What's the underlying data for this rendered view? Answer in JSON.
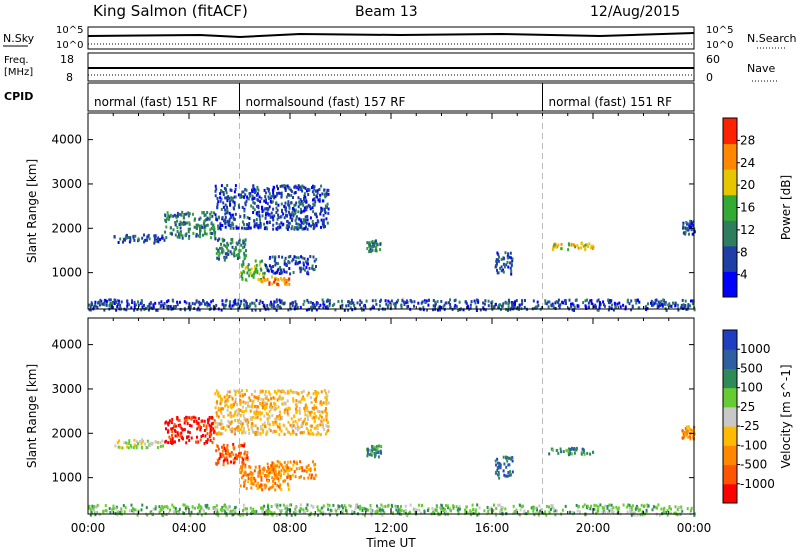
{
  "header": {
    "station": "King Salmon (fitACF)",
    "beam": "Beam 13",
    "date": "12/Aug/2015"
  },
  "summary_panels": {
    "nsky_label": "N.Sky",
    "nsearch_label": "N.Search",
    "freq_label_line1": "Freq.",
    "freq_label_line2": "[MHz]",
    "nave_label": "Nave",
    "cpid_label": "CPID",
    "nsky_ticks": [
      "10^5",
      "10^0"
    ],
    "nsearch_ticks": [
      "10^5",
      "10^0"
    ],
    "freq_ticks": [
      "18",
      "8"
    ],
    "nave_ticks": [
      "60",
      "0"
    ],
    "modes": [
      {
        "label": "normal (fast) 151 RF",
        "start": 0,
        "end": 6
      },
      {
        "label": "normalsound (fast) 157 RF",
        "start": 6,
        "end": 18
      },
      {
        "label": "normal (fast) 151 RF",
        "start": 18,
        "end": 24
      }
    ]
  },
  "chart_data": [
    {
      "type": "heatmap",
      "name": "power",
      "ylabel": "Slant Range [km]",
      "xlabel": "",
      "xlim": [
        0,
        24
      ],
      "ylim": [
        180,
        4600
      ],
      "yticks": [
        1000,
        2000,
        3000,
        4000
      ],
      "colorbar": {
        "label": "Power [dB]",
        "ticks": [
          "28",
          "24",
          "20",
          "16",
          "12",
          "8",
          "4"
        ],
        "colors": [
          "#0000ff",
          "#1f3fa6",
          "#2e7d5e",
          "#33aa33",
          "#e6c600",
          "#ff8800",
          "#ff2200"
        ]
      },
      "regions": [
        {
          "t0": 1.0,
          "t1": 3.0,
          "r0": 1700,
          "r1": 1900,
          "level": 1
        },
        {
          "t0": 3.0,
          "t1": 5.0,
          "r0": 1800,
          "r1": 2400,
          "level": 2
        },
        {
          "t0": 5.0,
          "t1": 6.3,
          "r0": 1300,
          "r1": 1800,
          "level": 2
        },
        {
          "t0": 6.0,
          "t1": 7.0,
          "r0": 850,
          "r1": 1300,
          "level": 3
        },
        {
          "t0": 6.8,
          "t1": 8.0,
          "r0": 750,
          "r1": 950,
          "level": 5
        },
        {
          "t0": 7.0,
          "t1": 9.0,
          "r0": 1000,
          "r1": 1400,
          "level": 1
        },
        {
          "t0": 5.0,
          "t1": 9.5,
          "r0": 2000,
          "r1": 3000,
          "level": 1
        },
        {
          "t0": 11.0,
          "t1": 11.6,
          "r0": 1500,
          "r1": 1750,
          "level": 2
        },
        {
          "t0": 16.1,
          "t1": 16.8,
          "r0": 1000,
          "r1": 1500,
          "level": 1
        },
        {
          "t0": 18.2,
          "t1": 20.0,
          "r0": 1550,
          "r1": 1700,
          "level": 4
        },
        {
          "t0": 23.5,
          "t1": 24.0,
          "r0": 1900,
          "r1": 2200,
          "level": 1
        },
        {
          "t0": 0.0,
          "t1": 24.0,
          "r0": 180,
          "r1": 420,
          "level": 1
        }
      ]
    },
    {
      "type": "heatmap",
      "name": "velocity",
      "ylabel": "Slant Range [km]",
      "xlabel": "Time UT",
      "xlim": [
        0,
        24
      ],
      "ylim": [
        180,
        4600
      ],
      "yticks": [
        1000,
        2000,
        3000,
        4000
      ],
      "xticks": [
        "00:00",
        "04:00",
        "08:00",
        "12:00",
        "16:00",
        "20:00",
        "00:00"
      ],
      "colorbar": {
        "label": "Velocity [m s^-1]",
        "ticks": [
          "1000",
          "500",
          "100",
          "25",
          "-25",
          "-100",
          "-500",
          "-1000"
        ],
        "colors": [
          "#ff0000",
          "#ff5500",
          "#ff8800",
          "#ffbb00",
          "#c8c8c8",
          "#66cc33",
          "#2e8b57",
          "#2e5fa0",
          "#1f3fc0"
        ]
      },
      "regions": [
        {
          "t0": 1.0,
          "t1": 3.0,
          "r0": 1700,
          "r1": 1900,
          "level": 4
        },
        {
          "t0": 3.0,
          "t1": 5.0,
          "r0": 1800,
          "r1": 2400,
          "level": 0
        },
        {
          "t0": 5.0,
          "t1": 6.3,
          "r0": 1300,
          "r1": 1800,
          "level": 1
        },
        {
          "t0": 6.0,
          "t1": 8.0,
          "r0": 750,
          "r1": 1300,
          "level": 2
        },
        {
          "t0": 7.0,
          "t1": 9.0,
          "r0": 1000,
          "r1": 1400,
          "level": 2
        },
        {
          "t0": 5.0,
          "t1": 9.5,
          "r0": 2000,
          "r1": 3000,
          "level": 3
        },
        {
          "t0": 11.0,
          "t1": 11.6,
          "r0": 1500,
          "r1": 1750,
          "level": 6
        },
        {
          "t0": 16.1,
          "t1": 16.8,
          "r0": 1000,
          "r1": 1500,
          "level": 7
        },
        {
          "t0": 18.2,
          "t1": 20.0,
          "r0": 1550,
          "r1": 1700,
          "level": 6
        },
        {
          "t0": 23.5,
          "t1": 24.0,
          "r0": 1900,
          "r1": 2200,
          "level": 2
        },
        {
          "t0": 0.0,
          "t1": 24.0,
          "r0": 180,
          "r1": 420,
          "level": 5
        }
      ]
    }
  ]
}
